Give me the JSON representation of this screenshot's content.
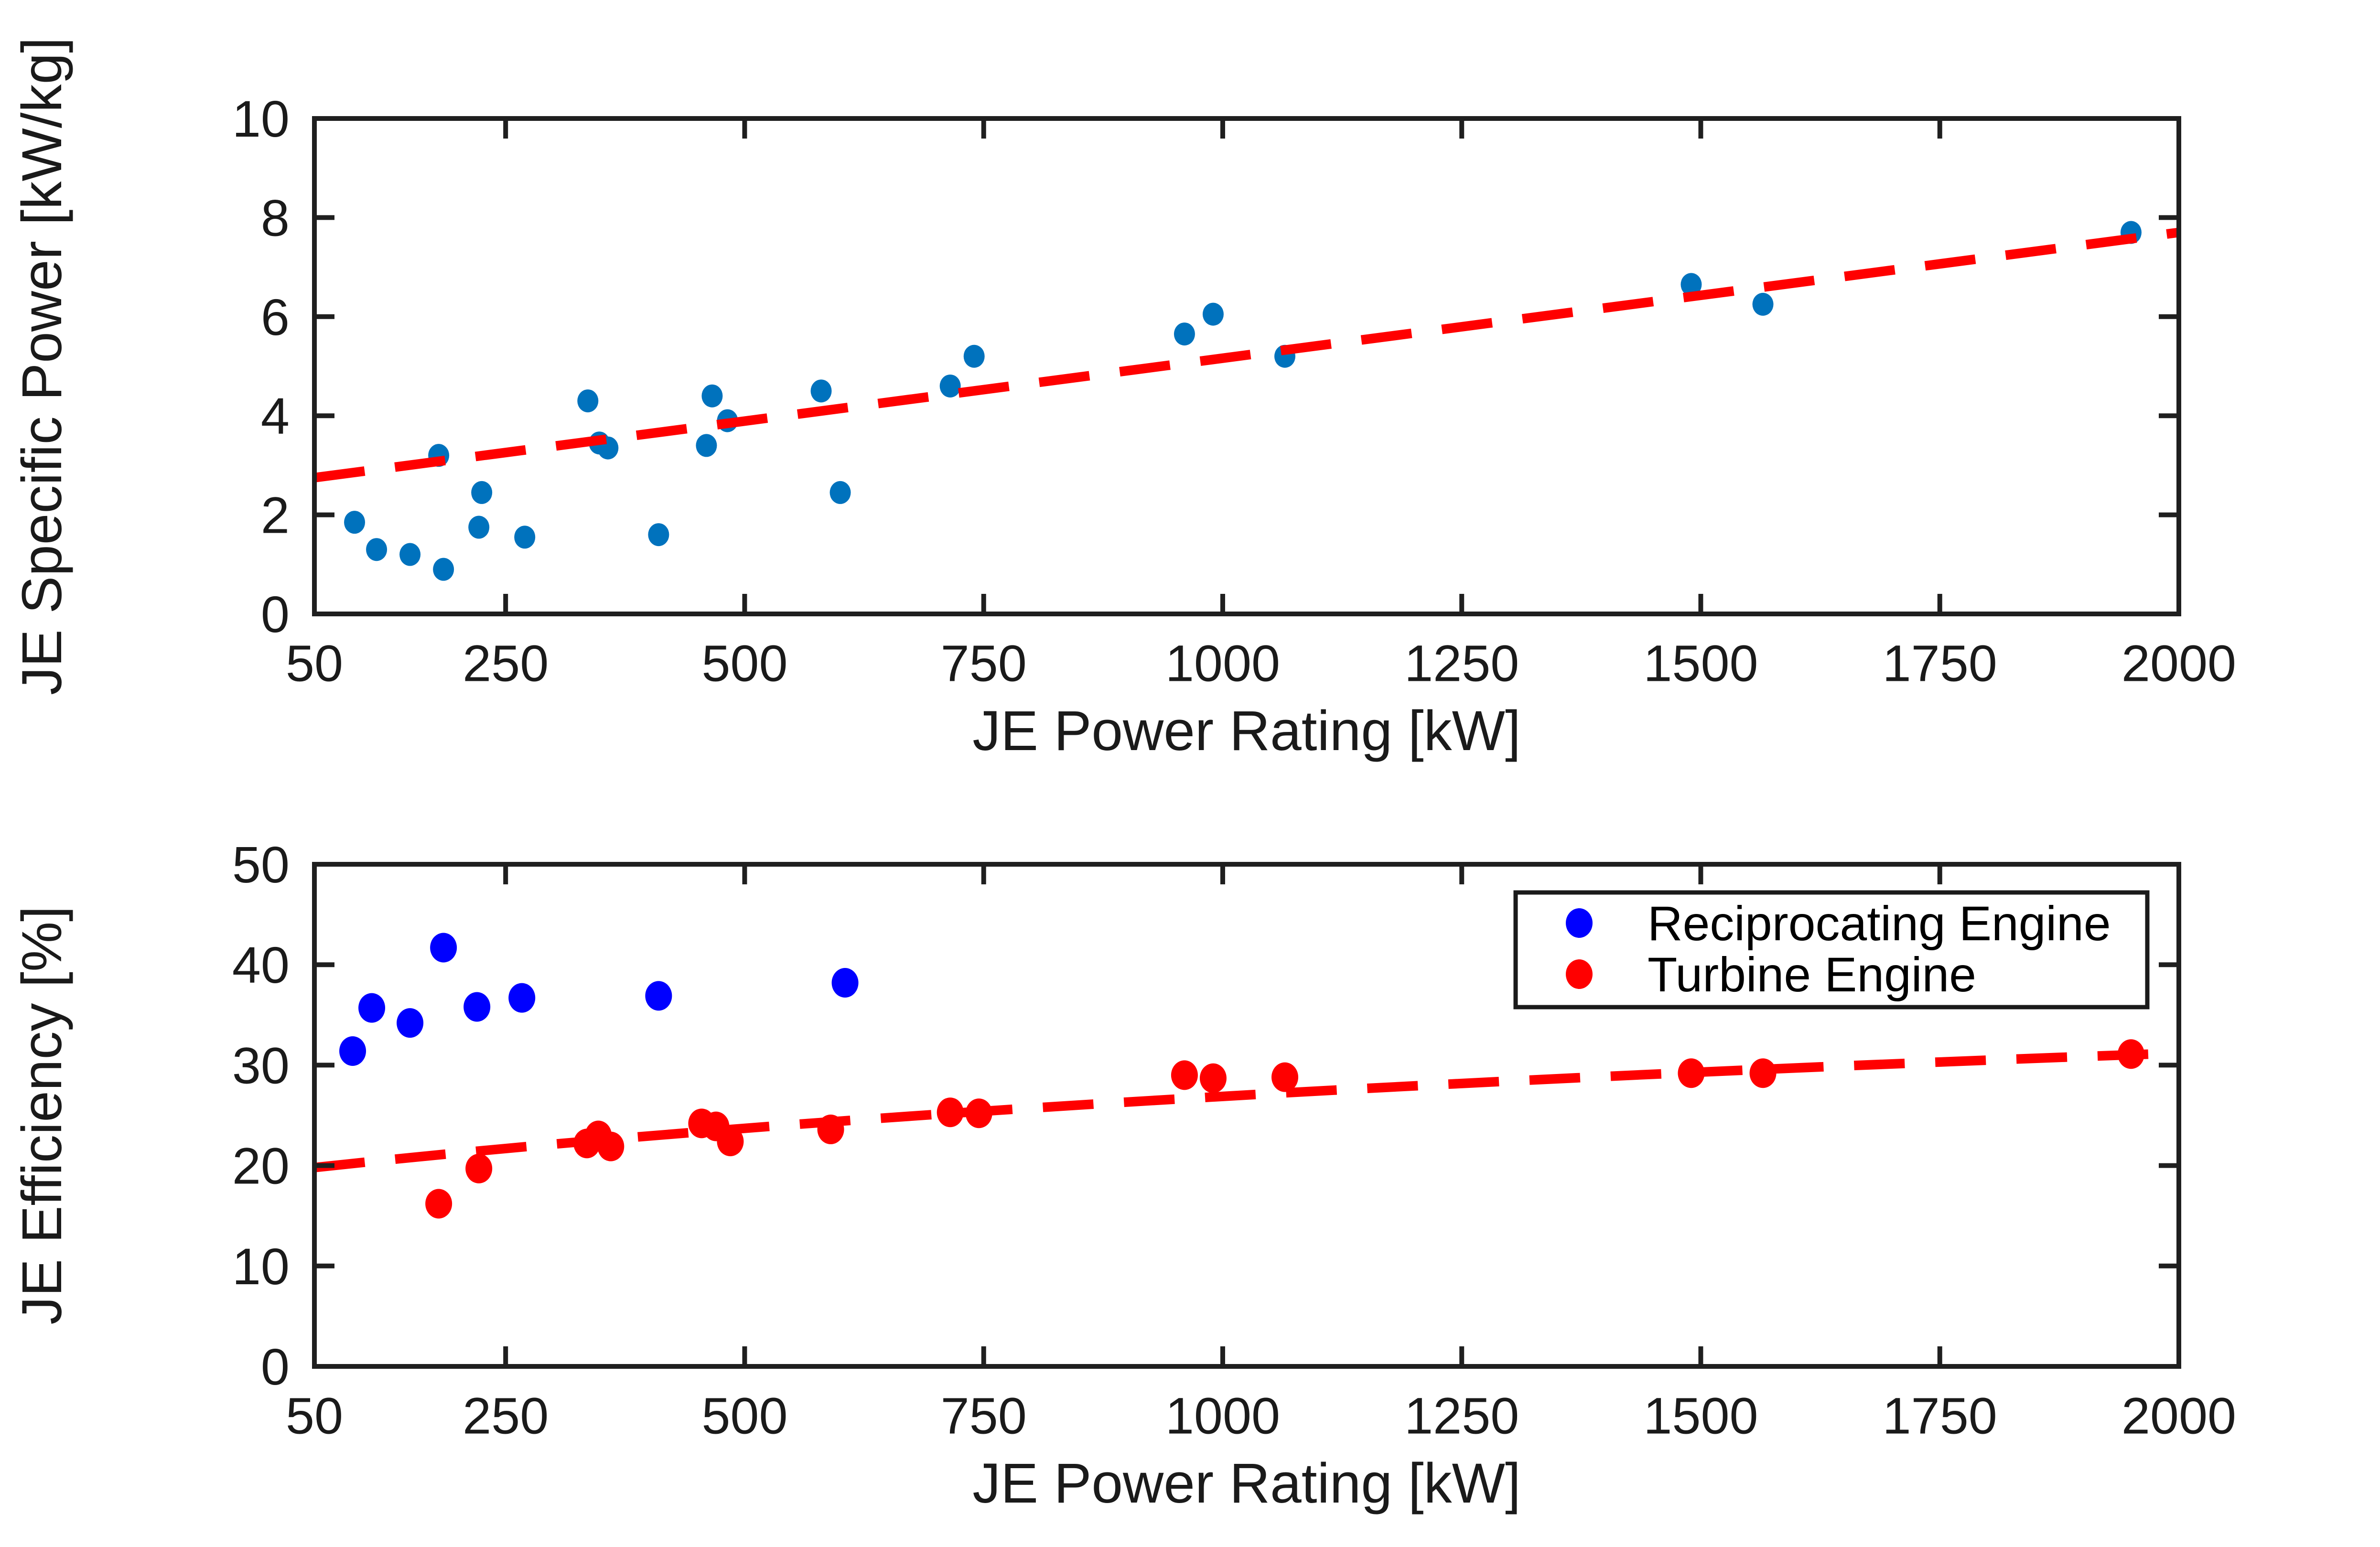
{
  "figure": {
    "background_color": "#ffffff",
    "axes_color": "#1f1f1f",
    "trend_color": "#ff0000"
  },
  "chart_data": [
    {
      "type": "scatter",
      "title": "",
      "xlabel": "JE Power Rating [kW]",
      "ylabel": "JE Specific Power [kW/kg]",
      "xlim": [
        50,
        2000
      ],
      "ylim": [
        0,
        10
      ],
      "xticks": [
        50,
        250,
        500,
        750,
        1000,
        1250,
        1500,
        1750,
        2000
      ],
      "yticks": [
        0,
        2,
        4,
        6,
        8,
        10
      ],
      "grid": false,
      "legend": null,
      "series": [
        {
          "name": "JE Specific Power",
          "type": "scatter",
          "marker_color": "#0072BD",
          "points": [
            [
              92,
              1.85
            ],
            [
              115,
              1.3
            ],
            [
              150,
              1.2
            ],
            [
              185,
              0.9
            ],
            [
              180,
              3.2
            ],
            [
              225,
              2.45
            ],
            [
              222,
              1.75
            ],
            [
              270,
              1.55
            ],
            [
              336,
              4.3
            ],
            [
              348,
              3.45
            ],
            [
              357,
              3.35
            ],
            [
              410,
              1.6
            ],
            [
              460,
              3.4
            ],
            [
              466,
              4.4
            ],
            [
              482,
              3.9
            ],
            [
              580,
              4.5
            ],
            [
              600,
              2.45
            ],
            [
              715,
              4.6
            ],
            [
              740,
              5.2
            ],
            [
              960,
              5.65
            ],
            [
              990,
              6.05
            ],
            [
              1065,
              5.2
            ],
            [
              1490,
              6.65
            ],
            [
              1565,
              6.25
            ],
            [
              1950,
              7.7
            ]
          ]
        }
      ],
      "trend": {
        "type": "linear-dashed",
        "color": "#ff0000",
        "points": [
          [
            50,
            2.75
          ],
          [
            2000,
            7.7
          ]
        ]
      }
    },
    {
      "type": "scatter",
      "title": "",
      "xlabel": "JE Power Rating [kW]",
      "ylabel": "JE Efficiency [%]",
      "xlim": [
        50,
        2000
      ],
      "ylim": [
        0,
        50
      ],
      "xticks": [
        50,
        250,
        500,
        750,
        1000,
        1250,
        1500,
        1750,
        2000
      ],
      "yticks": [
        0,
        10,
        20,
        30,
        40,
        50
      ],
      "grid": false,
      "legend": {
        "position": "northeast",
        "entries": [
          {
            "label": "Reciprocating Engine",
            "marker_color": "#0000ff"
          },
          {
            "label": "Turbine Engine",
            "marker_color": "#ff0000"
          }
        ]
      },
      "series": [
        {
          "name": "Reciprocating Engine",
          "type": "scatter",
          "marker_color": "#0000ff",
          "points": [
            [
              90,
              31.4
            ],
            [
              110,
              35.7
            ],
            [
              150,
              34.2
            ],
            [
              185,
              41.7
            ],
            [
              220,
              35.8
            ],
            [
              267,
              36.7
            ],
            [
              410,
              36.9
            ],
            [
              605,
              38.2
            ]
          ]
        },
        {
          "name": "Turbine Engine",
          "type": "scatter",
          "marker_color": "#ff0000",
          "points": [
            [
              180,
              16.2
            ],
            [
              222,
              19.7
            ],
            [
              335,
              22.2
            ],
            [
              347,
              23.0
            ],
            [
              360,
              21.9
            ],
            [
              455,
              24.2
            ],
            [
              470,
              23.9
            ],
            [
              485,
              22.4
            ],
            [
              590,
              23.6
            ],
            [
              715,
              25.3
            ],
            [
              745,
              25.2
            ],
            [
              960,
              29.0
            ],
            [
              990,
              28.7
            ],
            [
              1065,
              28.8
            ],
            [
              1490,
              29.2
            ],
            [
              1565,
              29.2
            ],
            [
              1950,
              31.1
            ]
          ]
        }
      ],
      "trend": {
        "type": "curve-dashed",
        "color": "#ff0000",
        "bezier_quadratic": [
          [
            50,
            19.8
          ],
          [
            750,
            27.0
          ],
          [
            2000,
            31.2
          ]
        ]
      }
    }
  ]
}
